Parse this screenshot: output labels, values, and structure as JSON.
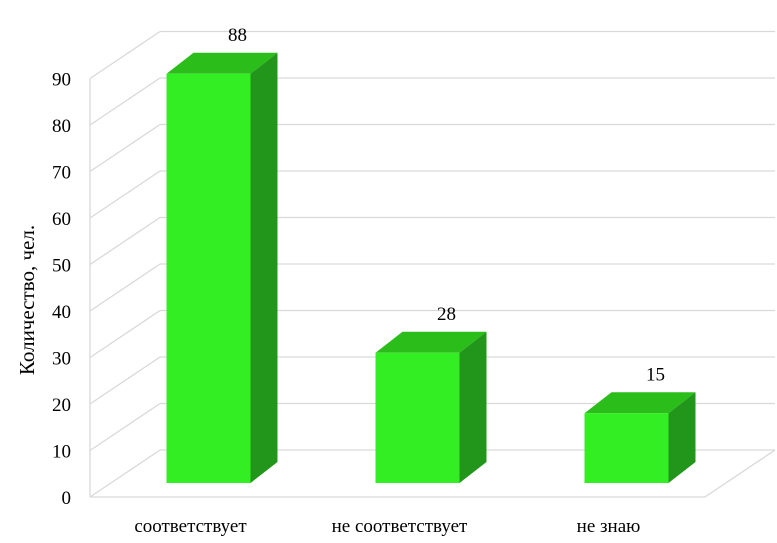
{
  "chart_data": {
    "type": "bar",
    "categories": [
      "соответствует",
      "не соответствует",
      "не знаю"
    ],
    "values": [
      88,
      28,
      15
    ],
    "data_labels": [
      "88",
      "28",
      "15"
    ],
    "title": "",
    "xlabel": "",
    "ylabel": "Количество, чел.",
    "ylim": [
      0,
      90
    ],
    "yticks": [
      "0",
      "10",
      "20",
      "30",
      "40",
      "50",
      "60",
      "70",
      "80",
      "90"
    ],
    "grid": true,
    "style": "3d-column",
    "colors": {
      "front": "#33ee22",
      "top": "#2bbd1a",
      "side": "#21961a",
      "grid": "#d9d9d9"
    }
  }
}
